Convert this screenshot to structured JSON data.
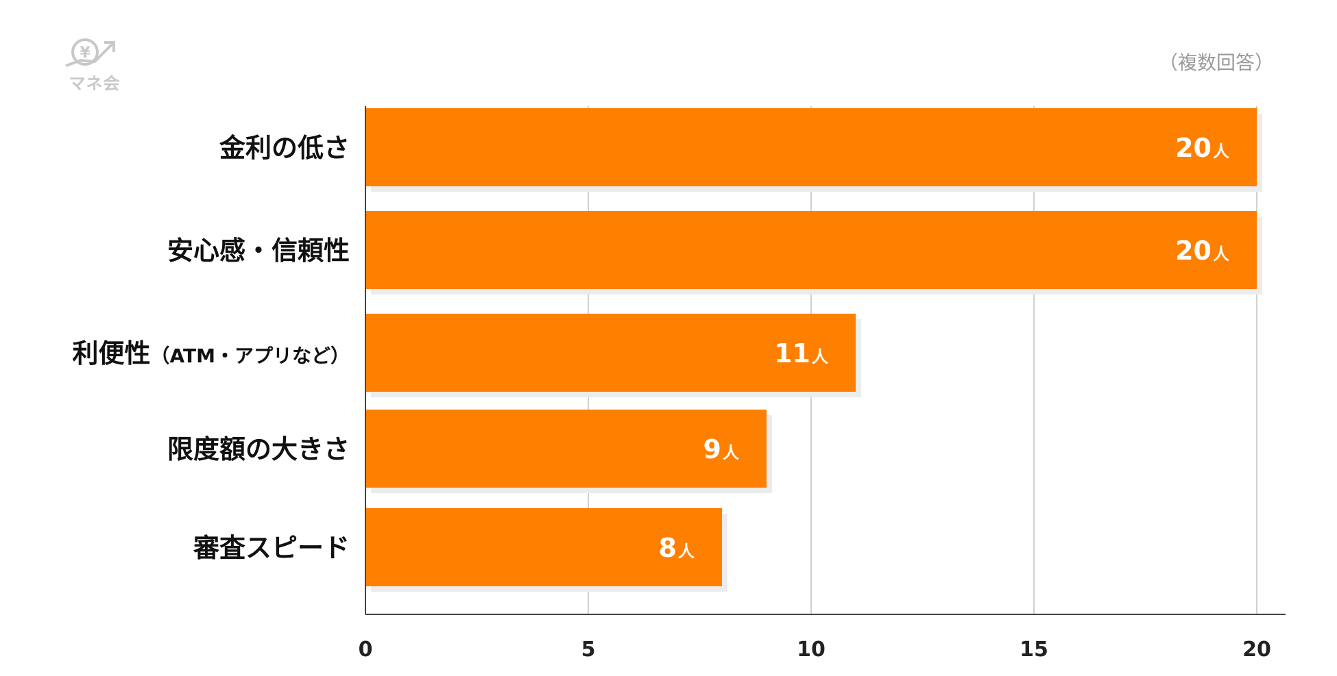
{
  "logo": {
    "text": "マネ会",
    "icon": "yen-coin-up-arrow-icon"
  },
  "note": "（複数回答）",
  "chart_data": {
    "type": "bar",
    "orientation": "horizontal",
    "categories": [
      "金利の低さ",
      "安心感・信頼性",
      "利便性",
      "限度額の大きさ",
      "審査スピード"
    ],
    "category_suffix": [
      "",
      "",
      "（ATM・アプリなど）",
      "",
      ""
    ],
    "values": [
      20,
      20,
      11,
      9,
      8
    ],
    "value_unit": "人",
    "xlim": [
      0,
      20
    ],
    "x_ticks": [
      0,
      5,
      10,
      15,
      20
    ],
    "grid": true,
    "bar_color": "#ff7f00",
    "shadow_color": "#ececec",
    "grid_color": "#d0d0d0"
  }
}
